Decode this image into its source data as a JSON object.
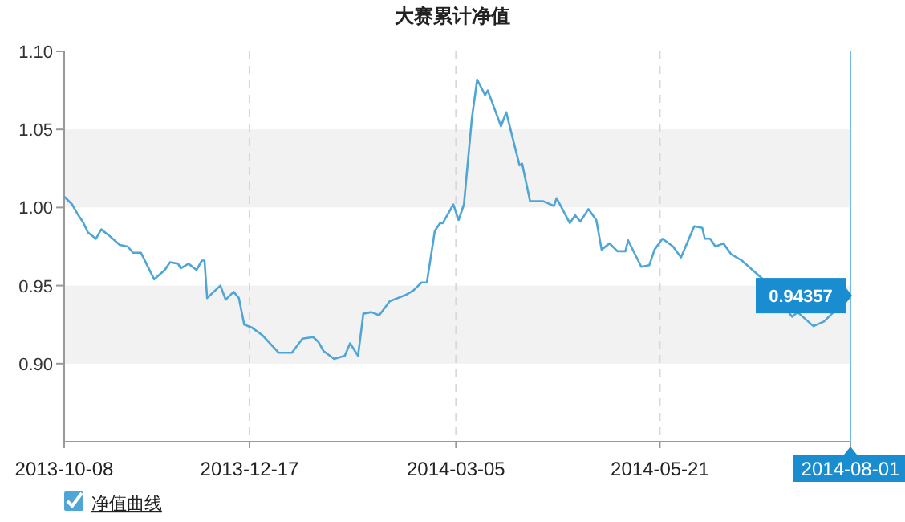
{
  "chart_data": {
    "type": "line",
    "title": "大赛累计净值",
    "x": [
      "2013-10-08",
      "2013-10-11",
      "2013-10-13",
      "2013-10-15",
      "2013-10-17",
      "2013-10-20",
      "2013-10-22",
      "2013-10-25",
      "2013-10-29",
      "2013-11-01",
      "2013-11-03",
      "2013-11-06",
      "2013-11-11",
      "2013-11-15",
      "2013-11-17",
      "2013-11-20",
      "2013-11-21",
      "2013-11-24",
      "2013-11-27",
      "2013-11-29",
      "2013-11-30",
      "2013-12-01",
      "2013-12-06",
      "2013-12-08",
      "2013-12-11",
      "2013-12-13",
      "2013-12-15",
      "2013-12-18",
      "2013-12-22",
      "2013-12-28",
      "2014-01-02",
      "2014-01-06",
      "2014-01-10",
      "2014-01-12",
      "2014-01-14",
      "2014-01-18",
      "2014-01-22",
      "2014-01-24",
      "2014-01-27",
      "2014-01-29",
      "2014-02-01",
      "2014-02-04",
      "2014-02-08",
      "2014-02-11",
      "2014-02-14",
      "2014-02-17",
      "2014-02-20",
      "2014-02-22",
      "2014-02-25",
      "2014-02-27",
      "2014-02-28",
      "2014-03-04",
      "2014-03-06",
      "2014-03-08",
      "2014-03-11",
      "2014-03-13",
      "2014-03-16",
      "2014-03-17",
      "2014-03-22",
      "2014-03-24",
      "2014-03-25",
      "2014-03-29",
      "2014-03-30",
      "2014-04-02",
      "2014-04-07",
      "2014-04-11",
      "2014-04-12",
      "2014-04-17",
      "2014-04-19",
      "2014-04-21",
      "2014-04-24",
      "2014-04-27",
      "2014-04-29",
      "2014-05-02",
      "2014-05-05",
      "2014-05-08",
      "2014-05-09",
      "2014-05-14",
      "2014-05-17",
      "2014-05-19",
      "2014-05-22",
      "2014-05-26",
      "2014-05-29",
      "2014-06-03",
      "2014-06-06",
      "2014-06-07",
      "2014-06-09",
      "2014-06-11",
      "2014-06-14",
      "2014-06-17",
      "2014-06-21",
      "2014-06-25",
      "2014-06-29",
      "2014-07-10",
      "2014-07-12",
      "2014-07-18",
      "2014-07-22",
      "2014-08-01"
    ],
    "series": [
      {
        "name": "净值曲线",
        "color": "#4fa6d6",
        "values": [
          1.007,
          1.002,
          0.996,
          0.991,
          0.984,
          0.98,
          0.986,
          0.982,
          0.976,
          0.975,
          0.971,
          0.971,
          0.954,
          0.96,
          0.965,
          0.964,
          0.961,
          0.964,
          0.96,
          0.966,
          0.966,
          0.942,
          0.95,
          0.941,
          0.946,
          0.942,
          0.925,
          0.923,
          0.918,
          0.907,
          0.907,
          0.916,
          0.917,
          0.914,
          0.908,
          0.903,
          0.905,
          0.913,
          0.905,
          0.932,
          0.933,
          0.931,
          0.94,
          0.942,
          0.944,
          0.947,
          0.952,
          0.952,
          0.985,
          0.99,
          0.99,
          1.002,
          0.992,
          1.002,
          1.057,
          1.082,
          1.072,
          1.075,
          1.052,
          1.061,
          1.054,
          1.027,
          1.028,
          1.004,
          1.004,
          1.001,
          1.006,
          0.99,
          0.995,
          0.991,
          0.999,
          0.992,
          0.973,
          0.977,
          0.972,
          0.972,
          0.979,
          0.962,
          0.963,
          0.973,
          0.98,
          0.975,
          0.968,
          0.988,
          0.987,
          0.98,
          0.98,
          0.975,
          0.977,
          0.97,
          0.966,
          0.96,
          0.954,
          0.93,
          0.933,
          0.924,
          0.927,
          0.94357
        ]
      }
    ],
    "xlim": [
      "2013-10-08",
      "2014-08-01"
    ],
    "xticks": [
      "2013-10-08",
      "2013-12-17",
      "2014-03-05",
      "2014-05-21",
      "2014-08-01"
    ],
    "ylim": [
      0.85,
      1.1
    ],
    "yticks": [
      {
        "value": 0.9,
        "label": "0.90"
      },
      {
        "value": 0.95,
        "label": "0.95"
      },
      {
        "value": 1.0,
        "label": "1.00"
      },
      {
        "value": 1.05,
        "label": "1.05"
      },
      {
        "value": 1.1,
        "label": "1.10"
      }
    ],
    "grid": "x",
    "bands": [
      {
        "axis": "y",
        "from": 0.9,
        "to": 0.95,
        "color": "#f2f2f2"
      },
      {
        "axis": "y",
        "from": 1.0,
        "to": 1.05,
        "color": "#f2f2f2"
      }
    ],
    "ref_lines": [
      {
        "axis": "x",
        "value": "2014-08-01",
        "color": "#1a8dd0"
      }
    ],
    "annotations": [
      {
        "text": "0.94357",
        "x": "2014-08-01",
        "y": 0.94357
      }
    ],
    "legend": "bottom left"
  }
}
